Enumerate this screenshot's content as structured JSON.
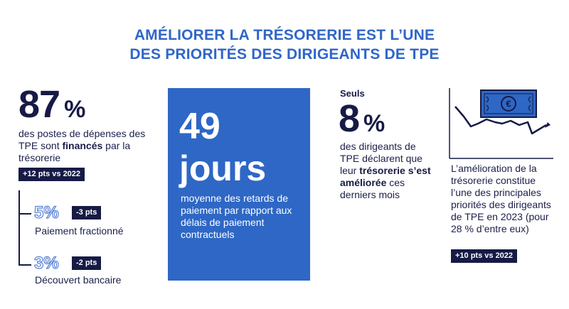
{
  "title": {
    "line1": "AMÉLIORER LA TRÉSORERIE EST L’UNE",
    "line2": "DES PRIORITÉS DES DIRIGEANTS DE TPE"
  },
  "stat1": {
    "value": "87",
    "unit": "%",
    "text_before": "des postes de dépenses des TPE sont ",
    "text_bold": "financés",
    "text_after": " par la trésorerie",
    "badge": "+12 pts vs 2022",
    "sub_items": [
      {
        "value": "5%",
        "badge": "-3 pts",
        "label": "Paiement fractionné"
      },
      {
        "value": "3%",
        "badge": "-2 pts",
        "label": "Découvert bancaire"
      }
    ]
  },
  "stat2": {
    "value": "49",
    "unit": "jours",
    "text": "moyenne des retards de paiement par rapport aux délais de paiement contractuels",
    "colors": {
      "box": "#2e67c5"
    }
  },
  "stat3": {
    "intro": "Seuls",
    "value": "8",
    "unit": "%",
    "text_before": "des dirigeants de TPE déclarent que leur ",
    "text_bold": "trésorerie s’est améliorée",
    "text_after": " ces derniers mois"
  },
  "stat4": {
    "icon": "euro-banknote-trend-icon",
    "text": "L’amélioration de la trésorerie constitue l’une des principales priorités des dirigeants de TPE en 2023 (pour 28 % d’entre eux)",
    "badge": "+10 pts vs 2022"
  },
  "colors": {
    "accent": "#2f66c8",
    "navy": "#161a45",
    "outline": "#5b83d6"
  }
}
